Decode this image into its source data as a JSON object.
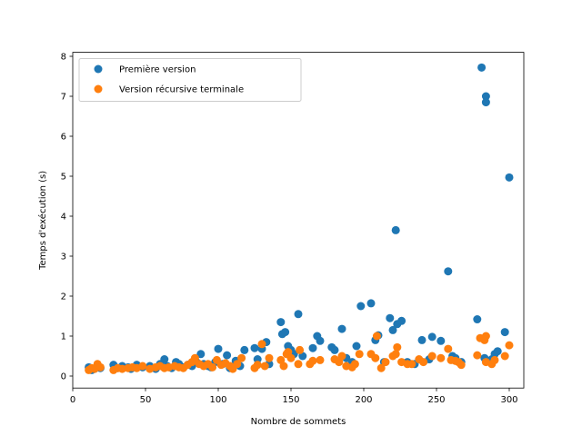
{
  "chart_data": {
    "type": "scatter",
    "title": "",
    "xlabel": "Nombre de sommets",
    "ylabel": "Temps d'exécution (s)",
    "xlim": [
      0,
      310
    ],
    "ylim": [
      -0.3,
      8.1
    ],
    "xticks": [
      0,
      50,
      100,
      150,
      200,
      250,
      300
    ],
    "yticks": [
      0,
      1,
      2,
      3,
      4,
      5,
      6,
      7,
      8
    ],
    "grid": false,
    "legend_position": "upper-left",
    "series": [
      {
        "name": "Première version",
        "color": "#1f77b4",
        "points": [
          [
            11,
            0.22
          ],
          [
            13,
            0.15
          ],
          [
            15,
            0.18
          ],
          [
            17,
            0.25
          ],
          [
            19,
            0.2
          ],
          [
            28,
            0.28
          ],
          [
            31,
            0.2
          ],
          [
            34,
            0.25
          ],
          [
            38,
            0.22
          ],
          [
            40,
            0.18
          ],
          [
            44,
            0.28
          ],
          [
            48,
            0.22
          ],
          [
            53,
            0.25
          ],
          [
            57,
            0.18
          ],
          [
            60,
            0.3
          ],
          [
            63,
            0.42
          ],
          [
            65,
            0.25
          ],
          [
            68,
            0.2
          ],
          [
            71,
            0.35
          ],
          [
            73,
            0.3
          ],
          [
            76,
            0.22
          ],
          [
            79,
            0.28
          ],
          [
            82,
            0.25
          ],
          [
            85,
            0.35
          ],
          [
            88,
            0.55
          ],
          [
            90,
            0.3
          ],
          [
            93,
            0.25
          ],
          [
            95,
            0.22
          ],
          [
            98,
            0.35
          ],
          [
            100,
            0.68
          ],
          [
            103,
            0.3
          ],
          [
            106,
            0.52
          ],
          [
            108,
            0.2
          ],
          [
            112,
            0.38
          ],
          [
            115,
            0.25
          ],
          [
            118,
            0.65
          ],
          [
            125,
            0.7
          ],
          [
            127,
            0.42
          ],
          [
            130,
            0.68
          ],
          [
            133,
            0.85
          ],
          [
            135,
            0.3
          ],
          [
            143,
            1.35
          ],
          [
            144,
            1.05
          ],
          [
            146,
            1.1
          ],
          [
            148,
            0.75
          ],
          [
            150,
            0.65
          ],
          [
            152,
            0.55
          ],
          [
            155,
            1.55
          ],
          [
            158,
            0.5
          ],
          [
            165,
            0.7
          ],
          [
            168,
            1.0
          ],
          [
            170,
            0.88
          ],
          [
            178,
            0.72
          ],
          [
            180,
            0.65
          ],
          [
            185,
            1.18
          ],
          [
            188,
            0.45
          ],
          [
            192,
            0.35
          ],
          [
            195,
            0.75
          ],
          [
            198,
            1.75
          ],
          [
            205,
            1.82
          ],
          [
            208,
            0.9
          ],
          [
            210,
            1.02
          ],
          [
            214,
            0.35
          ],
          [
            218,
            1.45
          ],
          [
            220,
            1.15
          ],
          [
            222,
            3.65
          ],
          [
            223,
            1.3
          ],
          [
            226,
            1.38
          ],
          [
            230,
            0.35
          ],
          [
            235,
            0.3
          ],
          [
            240,
            0.9
          ],
          [
            245,
            0.42
          ],
          [
            247,
            0.98
          ],
          [
            253,
            0.88
          ],
          [
            258,
            2.62
          ],
          [
            261,
            0.5
          ],
          [
            263,
            0.45
          ],
          [
            267,
            0.35
          ],
          [
            278,
            1.42
          ],
          [
            281,
            7.72
          ],
          [
            283,
            0.45
          ],
          [
            284,
            7.0
          ],
          [
            284,
            6.85
          ],
          [
            288,
            0.42
          ],
          [
            290,
            0.55
          ],
          [
            292,
            0.62
          ],
          [
            297,
            1.1
          ],
          [
            300,
            4.97
          ]
        ]
      },
      {
        "name": "Version récursive terminale",
        "color": "#ff7f0e",
        "points": [
          [
            11,
            0.15
          ],
          [
            13,
            0.2
          ],
          [
            15,
            0.18
          ],
          [
            17,
            0.3
          ],
          [
            19,
            0.22
          ],
          [
            28,
            0.15
          ],
          [
            31,
            0.2
          ],
          [
            34,
            0.18
          ],
          [
            38,
            0.2
          ],
          [
            41,
            0.22
          ],
          [
            44,
            0.2
          ],
          [
            48,
            0.25
          ],
          [
            53,
            0.18
          ],
          [
            57,
            0.22
          ],
          [
            60,
            0.25
          ],
          [
            63,
            0.2
          ],
          [
            66,
            0.22
          ],
          [
            70,
            0.25
          ],
          [
            73,
            0.22
          ],
          [
            76,
            0.2
          ],
          [
            79,
            0.28
          ],
          [
            82,
            0.35
          ],
          [
            84,
            0.45
          ],
          [
            87,
            0.3
          ],
          [
            90,
            0.25
          ],
          [
            93,
            0.3
          ],
          [
            96,
            0.22
          ],
          [
            99,
            0.4
          ],
          [
            102,
            0.28
          ],
          [
            105,
            0.32
          ],
          [
            108,
            0.25
          ],
          [
            110,
            0.18
          ],
          [
            113,
            0.3
          ],
          [
            116,
            0.45
          ],
          [
            125,
            0.2
          ],
          [
            127,
            0.28
          ],
          [
            130,
            0.8
          ],
          [
            132,
            0.25
          ],
          [
            135,
            0.45
          ],
          [
            143,
            0.4
          ],
          [
            145,
            0.25
          ],
          [
            147,
            0.55
          ],
          [
            148,
            0.6
          ],
          [
            150,
            0.45
          ],
          [
            155,
            0.3
          ],
          [
            156,
            0.65
          ],
          [
            163,
            0.3
          ],
          [
            165,
            0.38
          ],
          [
            170,
            0.4
          ],
          [
            180,
            0.42
          ],
          [
            183,
            0.35
          ],
          [
            185,
            0.5
          ],
          [
            188,
            0.25
          ],
          [
            192,
            0.22
          ],
          [
            194,
            0.3
          ],
          [
            197,
            0.55
          ],
          [
            205,
            0.55
          ],
          [
            208,
            0.45
          ],
          [
            209,
            1.0
          ],
          [
            212,
            0.2
          ],
          [
            215,
            0.35
          ],
          [
            220,
            0.5
          ],
          [
            222,
            0.55
          ],
          [
            223,
            0.72
          ],
          [
            226,
            0.35
          ],
          [
            230,
            0.3
          ],
          [
            233,
            0.3
          ],
          [
            238,
            0.42
          ],
          [
            241,
            0.35
          ],
          [
            247,
            0.5
          ],
          [
            253,
            0.45
          ],
          [
            258,
            0.68
          ],
          [
            260,
            0.4
          ],
          [
            263,
            0.38
          ],
          [
            265,
            0.35
          ],
          [
            267,
            0.28
          ],
          [
            278,
            0.52
          ],
          [
            280,
            0.95
          ],
          [
            283,
            0.9
          ],
          [
            284,
            1.0
          ],
          [
            284,
            0.35
          ],
          [
            288,
            0.3
          ],
          [
            290,
            0.4
          ],
          [
            297,
            0.5
          ],
          [
            300,
            0.77
          ]
        ]
      }
    ]
  }
}
